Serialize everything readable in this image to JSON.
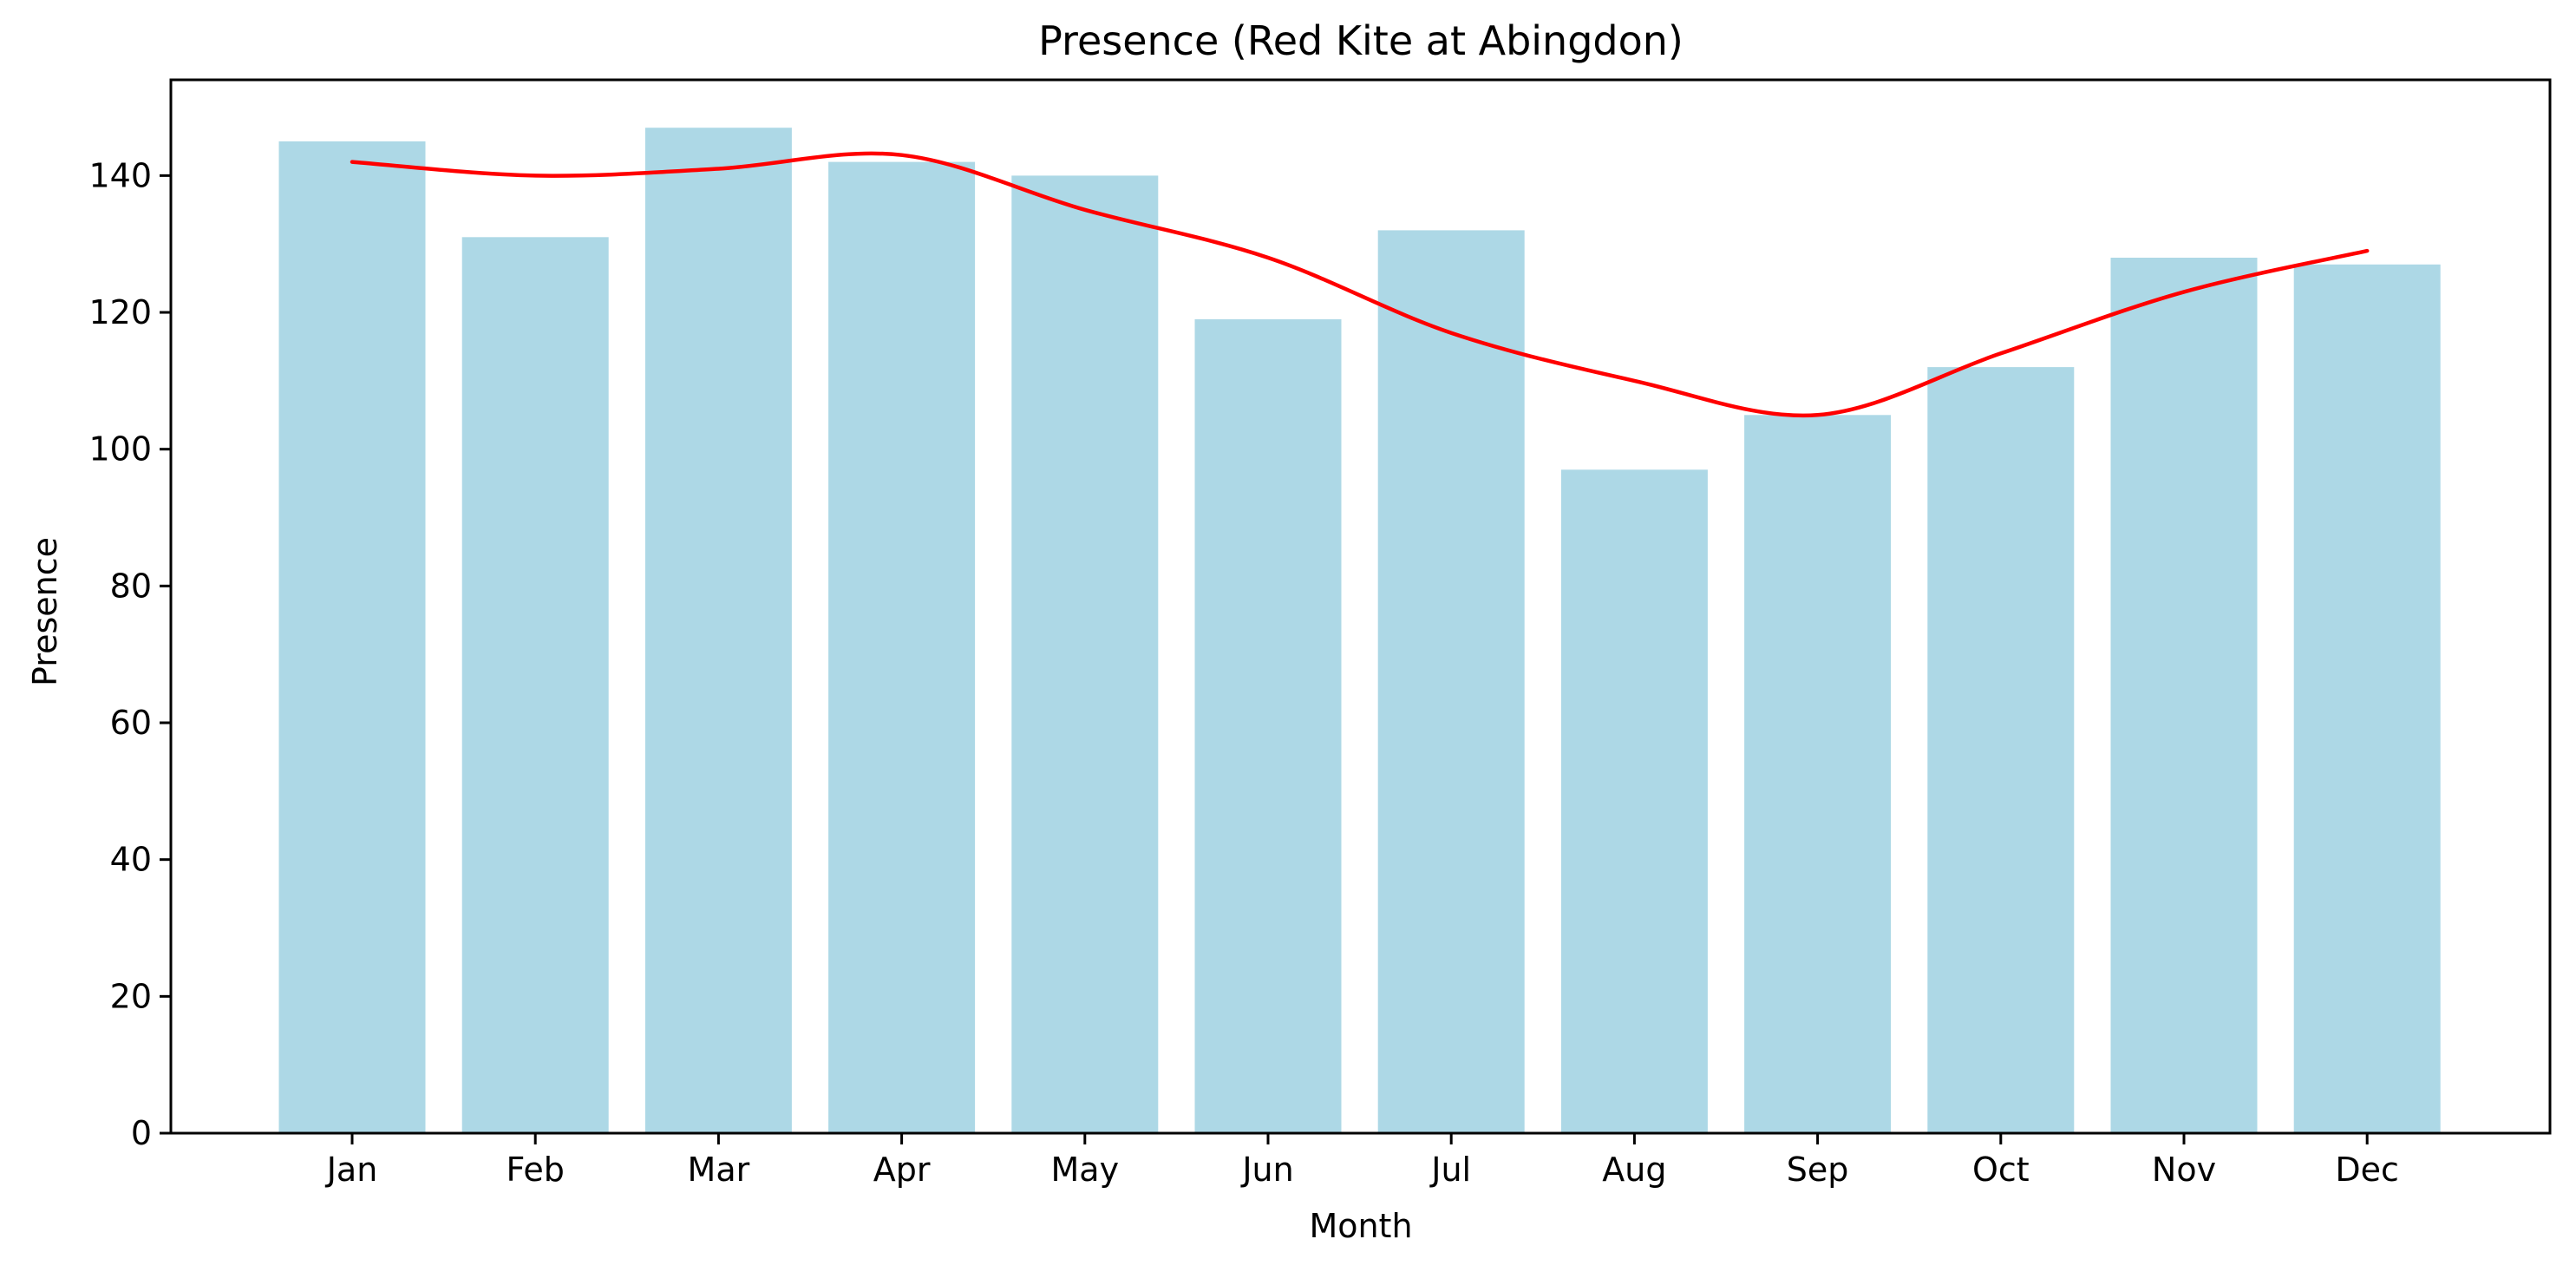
{
  "chart_data": {
    "type": "bar",
    "title": "Presence (Red Kite at Abingdon)",
    "xlabel": "Month",
    "ylabel": "Presence",
    "categories": [
      "Jan",
      "Feb",
      "Mar",
      "Apr",
      "May",
      "Jun",
      "Jul",
      "Aug",
      "Sep",
      "Oct",
      "Nov",
      "Dec"
    ],
    "series": [
      {
        "type": "bar",
        "values": [
          145,
          131,
          147,
          142,
          140,
          119,
          132,
          97,
          105,
          112,
          128,
          127
        ],
        "color": "#add8e6"
      },
      {
        "type": "line",
        "values": [
          142,
          140,
          141,
          143,
          135,
          128,
          117,
          110,
          105,
          114,
          123,
          129
        ],
        "color": "#ff0000"
      }
    ],
    "ylim": [
      0,
      154
    ],
    "yticks": [
      0,
      20,
      40,
      60,
      80,
      100,
      120,
      140
    ],
    "grid": false,
    "legend": "none"
  }
}
